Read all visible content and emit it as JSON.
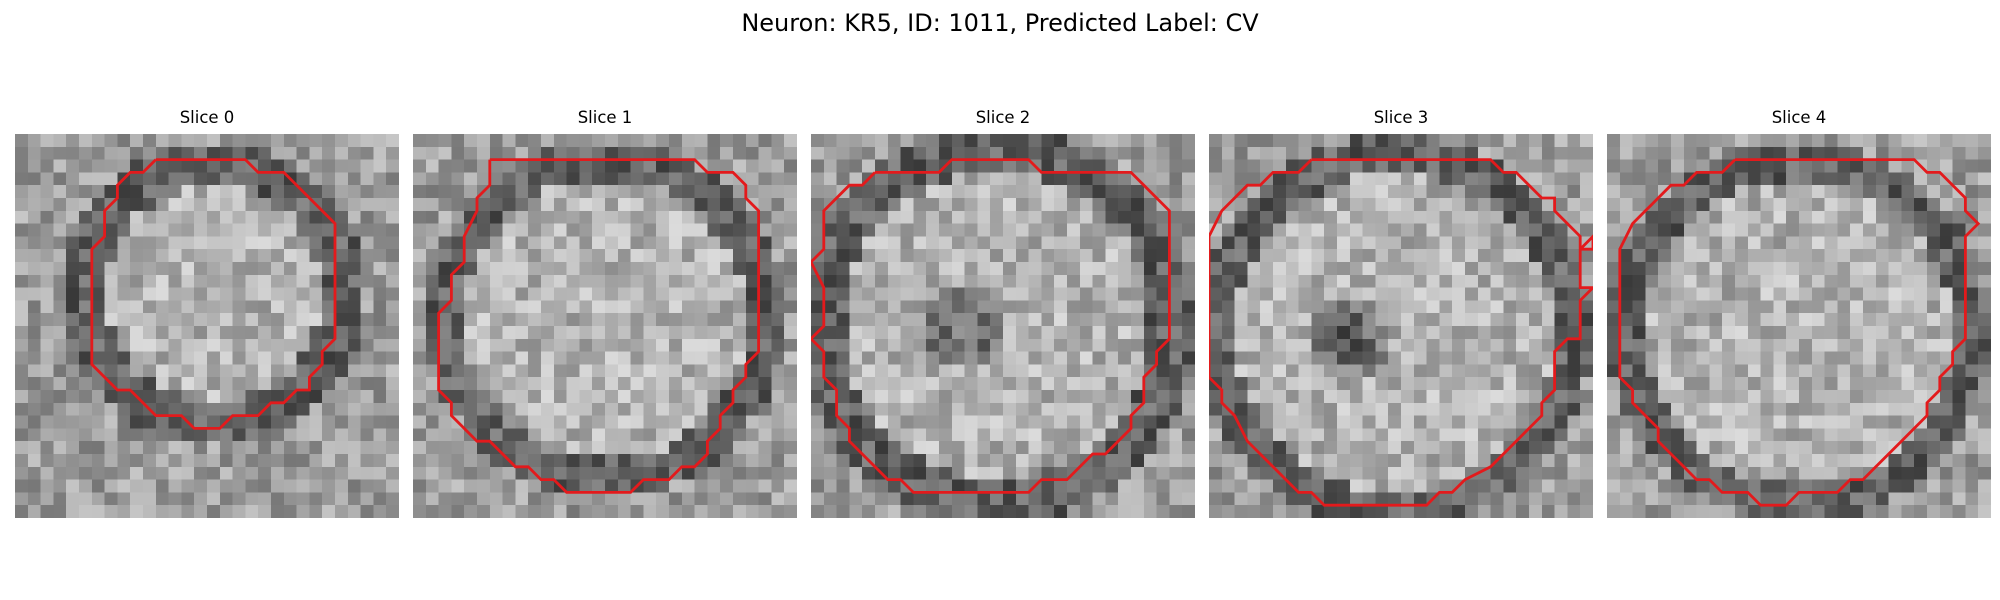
{
  "figure": {
    "title": "Neuron: KR5, ID: 1011, Predicted Label: CV"
  },
  "panels": [
    {
      "title": "Slice 0"
    },
    {
      "title": "Slice 1"
    },
    {
      "title": "Slice 2"
    },
    {
      "title": "Slice 3"
    },
    {
      "title": "Slice 4"
    }
  ],
  "colors": {
    "contour": "#e31a1c",
    "background": "#ffffff"
  }
}
